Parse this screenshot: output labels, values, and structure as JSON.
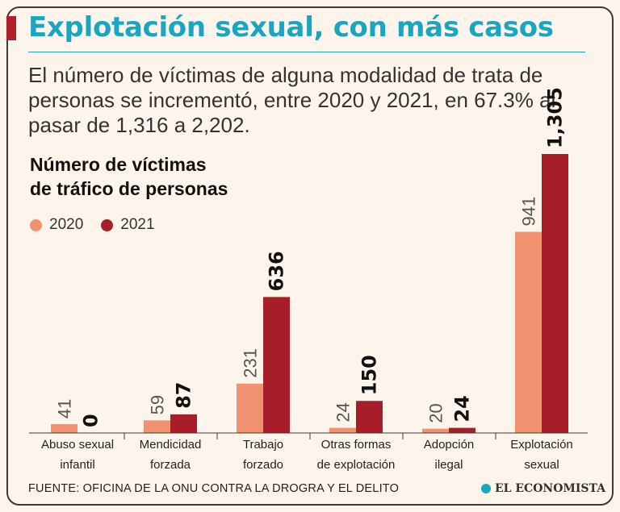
{
  "header": {
    "title": "Explotación sexual, con más casos",
    "subtitle": "El número de víctimas de alguna modalidad de trata de personas se incrementó, entre 2020 y 2021, en 67.3% al pasar de 1,316 a 2,202."
  },
  "chart_data": {
    "type": "bar",
    "title_lines": [
      "Número de víctimas",
      "de tráfico de personas"
    ],
    "categories": [
      [
        "Abuso sexual",
        "infantil"
      ],
      [
        "Mendicidad",
        "forzada"
      ],
      [
        "Trabajo",
        "forzado"
      ],
      [
        "Otras formas",
        "de explotación"
      ],
      [
        "Adopción",
        "ilegal"
      ],
      [
        "Explotación",
        "sexual"
      ]
    ],
    "series": [
      {
        "name": "2020",
        "color": "#f0916f",
        "values": [
          41,
          59,
          231,
          24,
          20,
          941
        ],
        "labels": [
          "41",
          "59",
          "231",
          "24",
          "20",
          "941"
        ]
      },
      {
        "name": "2021",
        "color": "#a81d2a",
        "values": [
          0,
          87,
          636,
          150,
          24,
          1305
        ],
        "labels": [
          "0",
          "87",
          "636",
          "150",
          "24",
          "1,305"
        ]
      }
    ],
    "ylim": [
      0,
      1305
    ],
    "xlabel": "",
    "ylabel": ""
  },
  "footer": {
    "source": "FUENTE: OFICINA DE LA ONU CONTRA LA DROGRA Y EL DELITO",
    "brand": "EL ECONOMISTA"
  }
}
